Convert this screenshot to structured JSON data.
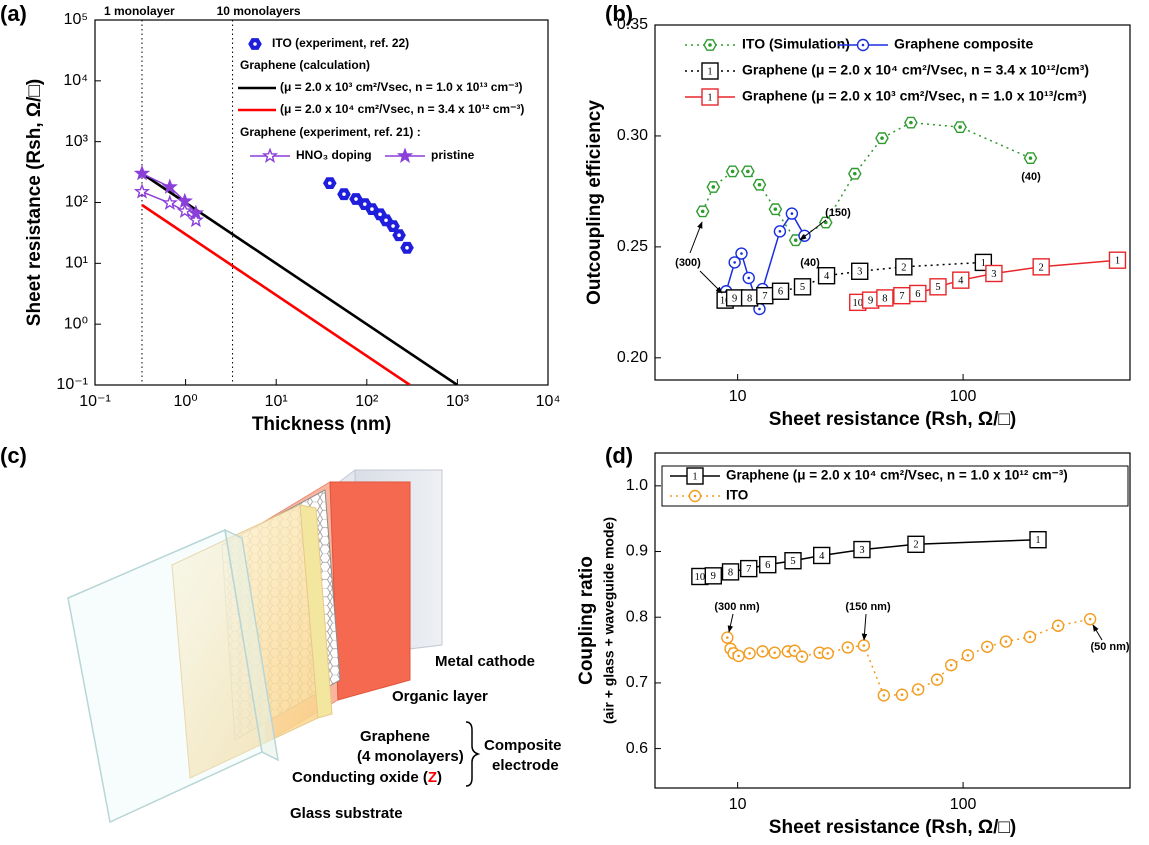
{
  "chart_data": [
    {
      "type": "line",
      "label": "(a)",
      "xlabel": "Thickness (nm)",
      "ylabel": "Sheet resistance (Rsh, Ω/□)",
      "xscale": "log",
      "yscale": "log",
      "xlim": [
        0.1,
        10000
      ],
      "ylim": [
        0.1,
        100000
      ],
      "xticks": [
        {
          "value": 0.1,
          "label": "10⁻¹"
        },
        {
          "value": 1,
          "label": "10⁰"
        },
        {
          "value": 10,
          "label": "10¹"
        },
        {
          "value": 100,
          "label": "10²"
        },
        {
          "value": 1000,
          "label": "10³"
        },
        {
          "value": 10000,
          "label": "10⁴"
        }
      ],
      "yticks": [
        {
          "value": 0.1,
          "label": "10⁻¹"
        },
        {
          "value": 1,
          "label": "10⁰"
        },
        {
          "value": 10,
          "label": "10¹"
        },
        {
          "value": 100,
          "label": "10²"
        },
        {
          "value": 1000,
          "label": "10³"
        },
        {
          "value": 10000,
          "label": "10⁴"
        },
        {
          "value": 100000,
          "label": "10⁵"
        }
      ],
      "vlines": [
        {
          "x": 0.33,
          "label": "1 monolayer"
        },
        {
          "x": 3.3,
          "label": "10 monolayers"
        }
      ],
      "legend_headers": [
        "Graphene (calculation)",
        "Graphene (experiment, ref. 21) :"
      ],
      "series": [
        {
          "name": "ITO (experiment, ref. 22)",
          "color": "#1e1edc",
          "marker": "hexagon",
          "filled": true,
          "linestyle": "none",
          "x": [
            39,
            56,
            76,
            95,
            114,
            140,
            163,
            195,
            227,
            278
          ],
          "values": [
            208,
            137,
            114,
            94,
            78,
            64,
            51,
            41,
            29,
            18
          ]
        },
        {
          "name": "(μ = 2.0 x 10³ cm²/Vsec, n = 1.0 x 10¹³ cm⁻³)",
          "color": "#000000",
          "marker": "none",
          "filled": false,
          "linestyle": "solid",
          "x": [
            0.33,
            1000
          ],
          "values": [
            300,
            0.1
          ]
        },
        {
          "name": "(μ = 2.0 x 10⁴ cm²/Vsec, n = 3.4 x 10¹² cm⁻³)",
          "color": "#ff0000",
          "marker": "none",
          "filled": false,
          "linestyle": "solid",
          "x": [
            0.33,
            300
          ],
          "values": [
            91,
            0.1
          ]
        },
        {
          "name": "HNO₃ doping",
          "color": "#8b3fd9",
          "marker": "star",
          "filled": false,
          "linestyle": "solid",
          "x": [
            0.33,
            0.67,
            0.98,
            1.3
          ],
          "values": [
            150,
            98,
            72,
            51
          ]
        },
        {
          "name": "pristine",
          "color": "#8b3fd9",
          "marker": "star",
          "filled": true,
          "linestyle": "solid",
          "x": [
            0.33,
            0.67,
            0.98,
            1.3
          ],
          "values": [
            300,
            180,
            105,
            67
          ]
        }
      ]
    },
    {
      "type": "line",
      "label": "(b)",
      "xlabel": "Sheet resistance (Rsh, Ω/□)",
      "ylabel": "Outcoupling efficiency",
      "xscale": "log",
      "yscale": "linear",
      "xlim": [
        4.3,
        550
      ],
      "ylim": [
        0.19,
        0.35
      ],
      "xticks": [
        10,
        100
      ],
      "yticks": [
        {
          "value": 0.2,
          "label": "0.20"
        },
        {
          "value": 0.25,
          "label": "0.25"
        },
        {
          "value": 0.3,
          "label": "0.30"
        },
        {
          "value": 0.35,
          "label": "0.35"
        }
      ],
      "annotations": [
        "(300)",
        "(150)",
        "(40)",
        "(40)"
      ],
      "series": [
        {
          "name": "ITO (Simulation)",
          "color": "#2e9b2e",
          "marker": "hexagon",
          "filled": false,
          "linestyle": "dotted",
          "x": [
            7.0,
            7.8,
            9.5,
            11.1,
            12.5,
            14.7,
            18.1,
            24.6,
            33.1,
            43.7,
            58.7,
            97,
            199
          ],
          "values": [
            0.266,
            0.277,
            0.284,
            0.284,
            0.278,
            0.267,
            0.253,
            0.261,
            0.283,
            0.299,
            0.306,
            0.304,
            0.29
          ]
        },
        {
          "name": "Graphene composite",
          "color": "#1a2ee0",
          "marker": "circle",
          "filled": false,
          "linestyle": "solid",
          "x": [
            8.9,
            9.7,
            10.4,
            11.2,
            12.0,
            12.5,
            12.9,
            15.4,
            17.4,
            19.8
          ],
          "values": [
            0.23,
            0.243,
            0.247,
            0.236,
            0.227,
            0.222,
            0.231,
            0.257,
            0.265,
            0.255
          ]
        },
        {
          "name": "Graphene (μ = 2.0 x 10⁴ cm²/Vsec, n = 3.4 x 10¹²/cm³)",
          "color": "#000000",
          "marker": "square",
          "filled": false,
          "linestyle": "dotted",
          "x": [
            8.8,
            9.7,
            11.3,
            13.2,
            15.5,
            19.4,
            24.8,
            34.8,
            54.6,
            123
          ],
          "values": [
            0.226,
            0.227,
            0.227,
            0.228,
            0.23,
            0.232,
            0.237,
            0.239,
            0.241,
            0.243
          ],
          "point_labels": [
            "10",
            "9",
            "8",
            "7",
            "6",
            "5",
            "4",
            "3",
            "2",
            "1"
          ]
        },
        {
          "name": "Graphene (μ = 2.0 x 10³ cm²/Vsec, n = 1.0 x 10¹³/cm³)",
          "color": "#e8262a",
          "marker": "square",
          "filled": false,
          "linestyle": "solid",
          "x": [
            34.1,
            38.9,
            45.0,
            53.5,
            63.0,
            77.4,
            97.7,
            137,
            222,
            484
          ],
          "values": [
            0.225,
            0.226,
            0.227,
            0.228,
            0.229,
            0.232,
            0.235,
            0.238,
            0.241,
            0.244
          ],
          "point_labels": [
            "10",
            "9",
            "8",
            "7",
            "6",
            "5",
            "4",
            "3",
            "2",
            "1"
          ]
        }
      ]
    },
    {
      "type": "line",
      "label": "(d)",
      "xlabel": "Sheet resistance (Rsh, Ω/□)",
      "ylabel": "Coupling ratio",
      "ylabel2": "(air + glass + waveguide mode)",
      "xscale": "log",
      "yscale": "linear",
      "xlim": [
        4.3,
        550
      ],
      "ylim": [
        0.54,
        1.05
      ],
      "xticks": [
        10,
        100
      ],
      "yticks": [
        0.6,
        0.7,
        0.8,
        0.9,
        {
          "value": 1.0,
          "label": "1.0"
        }
      ],
      "annotations": [
        "(300 nm)",
        "(150 nm)",
        "(50 nm)"
      ],
      "series": [
        {
          "name": "Graphene (μ = 2.0 x 10⁴ cm²/Vsec, n = 1.0 x 10¹² cm⁻³)",
          "color": "#000000",
          "marker": "square",
          "filled": false,
          "linestyle": "solid",
          "x": [
            6.8,
            7.8,
            9.3,
            11.2,
            13.6,
            17.6,
            23.6,
            35.6,
            61.8,
            215
          ],
          "values": [
            0.862,
            0.863,
            0.869,
            0.874,
            0.88,
            0.886,
            0.894,
            0.903,
            0.911,
            0.918
          ],
          "point_labels": [
            "10",
            "9",
            "8",
            "7",
            "6",
            "5",
            "4",
            "3",
            "2",
            "1"
          ]
        },
        {
          "name": "ITO",
          "color": "#f39c1e",
          "marker": "circle",
          "filled": false,
          "linestyle": "dotted",
          "x": [
            9.0,
            9.3,
            9.6,
            10.1,
            11.3,
            12.9,
            14.6,
            16.7,
            17.9,
            19.3,
            23.1,
            25.1,
            30.8,
            36.3,
            44.5,
            53.6,
            63.2,
            76.7,
            88.6,
            105,
            128,
            155,
            198,
            264,
            366
          ],
          "values": [
            0.769,
            0.752,
            0.745,
            0.741,
            0.745,
            0.748,
            0.746,
            0.748,
            0.749,
            0.74,
            0.746,
            0.745,
            0.754,
            0.757,
            0.681,
            0.682,
            0.69,
            0.705,
            0.727,
            0.742,
            0.755,
            0.763,
            0.77,
            0.787,
            0.797
          ]
        }
      ]
    }
  ],
  "diagram": {
    "label": "(c)",
    "layers": {
      "metal_cathode": "Metal cathode",
      "organic_layer": "Organic layer",
      "graphene": "Graphene",
      "graphene_note": "(4 monolayers)",
      "conducting_oxide": "Conducting oxide (",
      "oxide_symbol": "Z",
      "oxide_close": ")",
      "glass_substrate": "Glass substrate"
    },
    "group": [
      "Composite",
      "electrode"
    ]
  }
}
